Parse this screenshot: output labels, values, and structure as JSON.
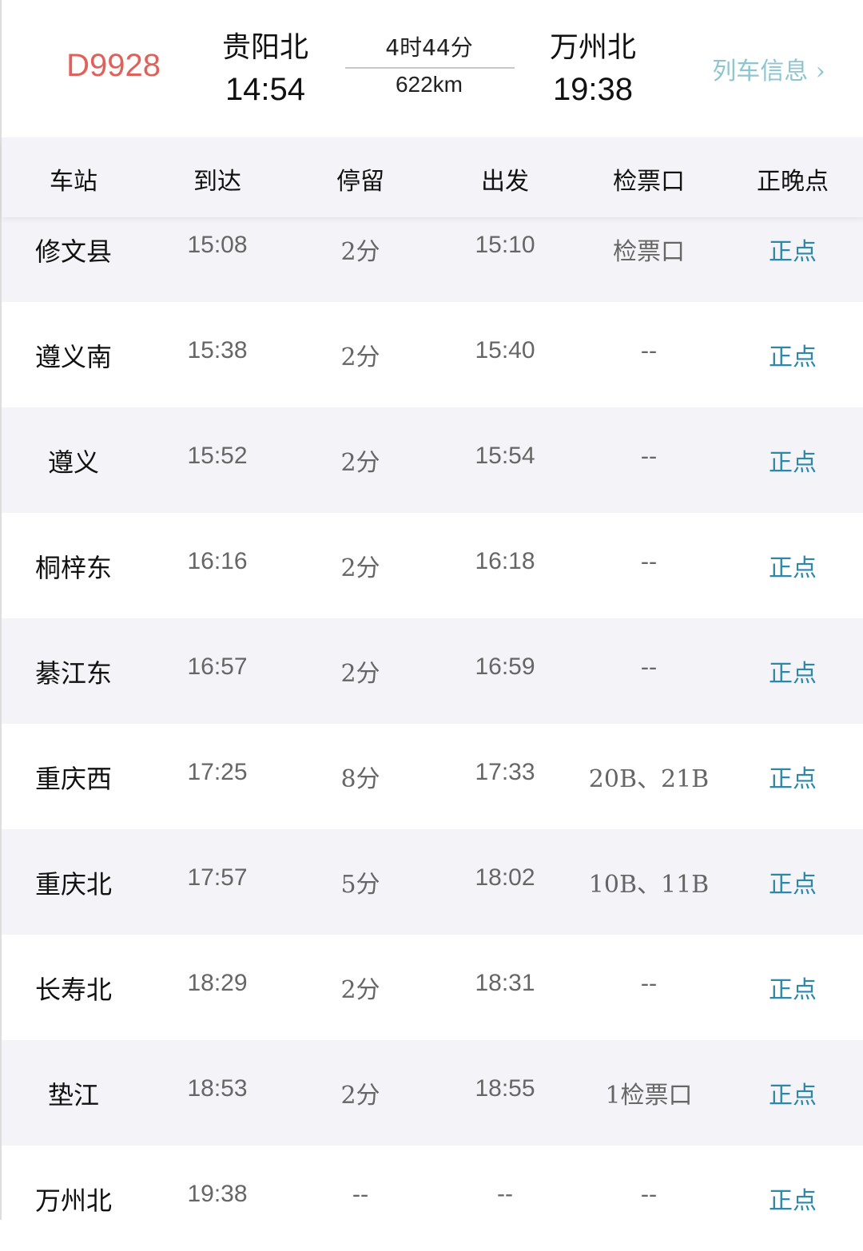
{
  "header": {
    "train_no": "D9928",
    "from_station": "贵阳北",
    "from_time": "14:54",
    "duration": "4时44分",
    "distance": "622km",
    "to_station": "万州北",
    "to_time": "19:38",
    "info_link": "列车信息 ›"
  },
  "colors": {
    "train_no": "#e0605a",
    "status": "#2d87a8",
    "info_link": "#8ec6cf"
  },
  "columns": [
    "车站",
    "到达",
    "停留",
    "出发",
    "检票口",
    "正晚点"
  ],
  "rows": [
    {
      "station": "修文县",
      "arrive": "15:08",
      "stop": "2分",
      "depart": "15:10",
      "gate": "检票口",
      "status": "正点"
    },
    {
      "station": "遵义南",
      "arrive": "15:38",
      "stop": "2分",
      "depart": "15:40",
      "gate": "--",
      "status": "正点"
    },
    {
      "station": "遵义",
      "arrive": "15:52",
      "stop": "2分",
      "depart": "15:54",
      "gate": "--",
      "status": "正点"
    },
    {
      "station": "桐梓东",
      "arrive": "16:16",
      "stop": "2分",
      "depart": "16:18",
      "gate": "--",
      "status": "正点"
    },
    {
      "station": "綦江东",
      "arrive": "16:57",
      "stop": "2分",
      "depart": "16:59",
      "gate": "--",
      "status": "正点"
    },
    {
      "station": "重庆西",
      "arrive": "17:25",
      "stop": "8分",
      "depart": "17:33",
      "gate": "20B、21B",
      "status": "正点"
    },
    {
      "station": "重庆北",
      "arrive": "17:57",
      "stop": "5分",
      "depart": "18:02",
      "gate": "10B、11B",
      "status": "正点"
    },
    {
      "station": "长寿北",
      "arrive": "18:29",
      "stop": "2分",
      "depart": "18:31",
      "gate": "--",
      "status": "正点"
    },
    {
      "station": "垫江",
      "arrive": "18:53",
      "stop": "2分",
      "depart": "18:55",
      "gate": "1检票口",
      "status": "正点"
    },
    {
      "station": "万州北",
      "arrive": "19:38",
      "stop": "--",
      "depart": "--",
      "gate": "--",
      "status": "正点"
    }
  ]
}
